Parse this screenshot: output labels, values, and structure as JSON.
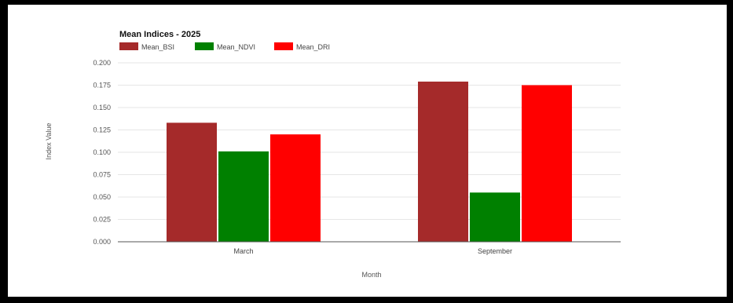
{
  "chart_data": {
    "type": "bar",
    "title": "Mean Indices - 2025",
    "xlabel": "Month",
    "ylabel": "Index Value",
    "categories": [
      "March",
      "September"
    ],
    "series": [
      {
        "name": "Mean_BSI",
        "color": "#a52a2a",
        "values": [
          0.133,
          0.179
        ]
      },
      {
        "name": "Mean_NDVI",
        "color": "#008000",
        "values": [
          0.101,
          0.055
        ]
      },
      {
        "name": "Mean_DRI",
        "color": "#ff0000",
        "values": [
          0.12,
          0.175
        ]
      }
    ],
    "ylim": [
      0,
      0.2
    ],
    "yticks": [
      "0.000",
      "0.025",
      "0.050",
      "0.075",
      "0.100",
      "0.125",
      "0.150",
      "0.175",
      "0.200"
    ],
    "grid": true,
    "legend_position": "top-left"
  }
}
